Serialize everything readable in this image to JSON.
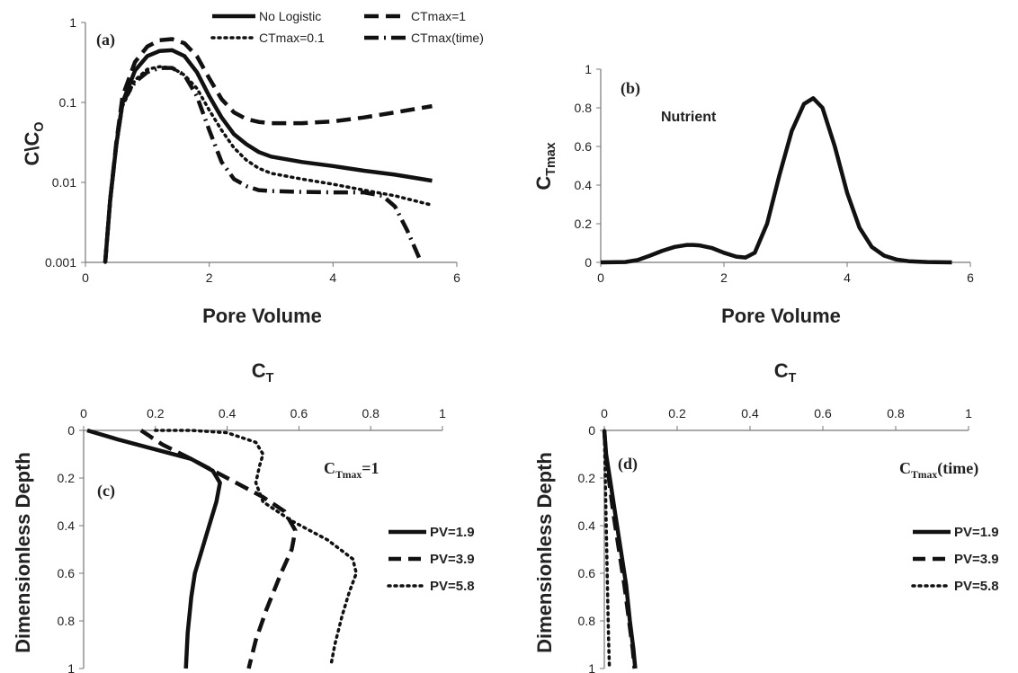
{
  "chart_data": [
    {
      "id": "a",
      "type": "line",
      "panel_label": "(a)",
      "xlabel": "Pore Volume",
      "ylabel": "C\\CO",
      "ylabel_main": "C\\C",
      "ylabel_sub": "O",
      "x_scale": "linear",
      "y_scale": "log",
      "xlim": [
        0,
        6
      ],
      "ylim": [
        0.001,
        1
      ],
      "x_ticks": [
        "0",
        "2",
        "4",
        "6"
      ],
      "y_ticks": [
        "0.001",
        "0.01",
        "0.1",
        "1"
      ],
      "legend_position": "top",
      "series": [
        {
          "name": "No Logistic",
          "style": "solid",
          "x": [
            0.32,
            0.4,
            0.5,
            0.6,
            0.8,
            1.0,
            1.2,
            1.4,
            1.6,
            1.8,
            2.0,
            2.2,
            2.4,
            2.6,
            2.8,
            3.0,
            3.5,
            4.0,
            4.5,
            5.0,
            5.6
          ],
          "y": [
            0.001,
            0.006,
            0.03,
            0.1,
            0.25,
            0.38,
            0.44,
            0.45,
            0.38,
            0.24,
            0.12,
            0.065,
            0.04,
            0.03,
            0.024,
            0.021,
            0.018,
            0.016,
            0.014,
            0.0125,
            0.0105
          ]
        },
        {
          "name": "CTmax=0.1",
          "style": "dotted",
          "x": [
            0.32,
            0.4,
            0.5,
            0.6,
            0.8,
            1.0,
            1.2,
            1.4,
            1.6,
            1.8,
            2.0,
            2.2,
            2.4,
            2.6,
            2.8,
            3.0,
            3.5,
            4.0,
            4.5,
            5.0,
            5.6
          ],
          "y": [
            0.001,
            0.006,
            0.028,
            0.09,
            0.19,
            0.26,
            0.28,
            0.27,
            0.22,
            0.15,
            0.08,
            0.045,
            0.027,
            0.019,
            0.015,
            0.013,
            0.011,
            0.0095,
            0.008,
            0.0068,
            0.0052
          ]
        },
        {
          "name": "CTmax=1",
          "style": "dashed",
          "x": [
            0.32,
            0.4,
            0.5,
            0.6,
            0.8,
            1.0,
            1.2,
            1.4,
            1.6,
            1.8,
            2.0,
            2.2,
            2.4,
            2.6,
            2.8,
            3.0,
            3.5,
            4.0,
            4.5,
            5.0,
            5.6
          ],
          "y": [
            0.001,
            0.006,
            0.032,
            0.12,
            0.32,
            0.5,
            0.6,
            0.62,
            0.55,
            0.38,
            0.2,
            0.11,
            0.075,
            0.062,
            0.057,
            0.055,
            0.055,
            0.058,
            0.065,
            0.075,
            0.09
          ]
        },
        {
          "name": "CTmax(time)",
          "style": "dashdot",
          "x": [
            0.32,
            0.4,
            0.5,
            0.6,
            0.8,
            1.0,
            1.2,
            1.4,
            1.6,
            1.8,
            2.0,
            2.2,
            2.4,
            2.6,
            2.8,
            3.0,
            3.5,
            4.0,
            4.5,
            4.8,
            5.0,
            5.2,
            5.4
          ],
          "y": [
            0.001,
            0.006,
            0.03,
            0.1,
            0.18,
            0.24,
            0.27,
            0.27,
            0.22,
            0.12,
            0.045,
            0.018,
            0.011,
            0.009,
            0.008,
            0.0078,
            0.0076,
            0.0075,
            0.0075,
            0.0068,
            0.005,
            0.0025,
            0.0011
          ]
        }
      ]
    },
    {
      "id": "b",
      "type": "line",
      "panel_label": "(b)",
      "annotation": "Nutrient",
      "xlabel": "Pore Volume",
      "ylabel": "CTmax",
      "ylabel_main": "C",
      "ylabel_sub": "Tmax",
      "x_scale": "linear",
      "y_scale": "linear",
      "xlim": [
        0,
        6
      ],
      "ylim": [
        0,
        1
      ],
      "x_ticks": [
        "0",
        "2",
        "4",
        "6"
      ],
      "y_ticks": [
        "0",
        "0.2",
        "0.4",
        "0.6",
        "0.8",
        "1"
      ],
      "series": [
        {
          "name": "",
          "style": "solid",
          "x": [
            0,
            0.4,
            0.6,
            0.8,
            1.0,
            1.2,
            1.4,
            1.5,
            1.6,
            1.8,
            2.0,
            2.2,
            2.35,
            2.5,
            2.7,
            2.9,
            3.1,
            3.3,
            3.45,
            3.6,
            3.8,
            4.0,
            4.2,
            4.4,
            4.6,
            4.8,
            5.0,
            5.3,
            5.7
          ],
          "y": [
            0,
            0.002,
            0.012,
            0.035,
            0.06,
            0.08,
            0.09,
            0.09,
            0.088,
            0.075,
            0.05,
            0.03,
            0.025,
            0.05,
            0.2,
            0.45,
            0.68,
            0.82,
            0.85,
            0.8,
            0.6,
            0.36,
            0.18,
            0.08,
            0.035,
            0.015,
            0.006,
            0.002,
            0.0
          ]
        }
      ]
    },
    {
      "id": "c",
      "type": "line",
      "panel_label": "(c)",
      "annotation_main": "C",
      "annotation_sub": "Tmax",
      "annotation_tail": "=1",
      "xlabel": "CT",
      "xlabel_main": "C",
      "xlabel_sub": "T",
      "ylabel": "Dimensionless Depth",
      "x_axis_position": "top",
      "y_inverted": true,
      "xlim": [
        0,
        1
      ],
      "ylim": [
        0,
        1
      ],
      "x_ticks": [
        "0",
        "0.2",
        "0.4",
        "0.6",
        "0.8",
        "1"
      ],
      "y_ticks": [
        "0",
        "0.2",
        "0.4",
        "0.6",
        "0.8",
        "1"
      ],
      "legend_position": "right",
      "series": [
        {
          "name": "PV=1.9",
          "style": "solid",
          "x": [
            0.01,
            0.1,
            0.2,
            0.3,
            0.36,
            0.38,
            0.37,
            0.35,
            0.33,
            0.31,
            0.3,
            0.29,
            0.285
          ],
          "y": [
            0,
            0.04,
            0.08,
            0.12,
            0.17,
            0.22,
            0.3,
            0.4,
            0.5,
            0.6,
            0.7,
            0.85,
            1.0
          ]
        },
        {
          "name": "PV=3.9",
          "style": "dashed",
          "x": [
            0.16,
            0.18,
            0.22,
            0.3,
            0.4,
            0.5,
            0.56,
            0.59,
            0.58,
            0.55,
            0.51,
            0.48,
            0.46
          ],
          "y": [
            0.0,
            0.02,
            0.06,
            0.12,
            0.2,
            0.28,
            0.34,
            0.42,
            0.5,
            0.6,
            0.75,
            0.88,
            1.0
          ]
        },
        {
          "name": "PV=5.8",
          "style": "dotted",
          "x": [
            0.2,
            0.3,
            0.4,
            0.48,
            0.5,
            0.49,
            0.48,
            0.5,
            0.58,
            0.68,
            0.75,
            0.76,
            0.74,
            0.72,
            0.7,
            0.69
          ],
          "y": [
            0.0,
            0.0,
            0.01,
            0.05,
            0.1,
            0.15,
            0.22,
            0.3,
            0.38,
            0.46,
            0.54,
            0.6,
            0.68,
            0.78,
            0.9,
            0.98
          ]
        }
      ]
    },
    {
      "id": "d",
      "type": "line",
      "panel_label": "(d)",
      "annotation_main": "C",
      "annotation_sub": "Tmax",
      "annotation_tail": "(time)",
      "xlabel": "CT",
      "xlabel_main": "C",
      "xlabel_sub": "T",
      "ylabel": "Dimensionless Depth",
      "x_axis_position": "top",
      "y_inverted": true,
      "xlim": [
        0,
        1
      ],
      "ylim": [
        0,
        1
      ],
      "x_ticks": [
        "0",
        "0.2",
        "0.4",
        "0.6",
        "0.8",
        "1"
      ],
      "y_ticks": [
        "0",
        "0.2",
        "0.4",
        "0.6",
        "0.8",
        "1"
      ],
      "legend_position": "right",
      "series": [
        {
          "name": "PV=1.9",
          "style": "solid",
          "x": [
            0.0,
            0.005,
            0.015,
            0.03,
            0.045,
            0.06,
            0.07,
            0.08,
            0.085
          ],
          "y": [
            0,
            0.1,
            0.2,
            0.35,
            0.5,
            0.65,
            0.8,
            0.92,
            1.0
          ]
        },
        {
          "name": "PV=3.9",
          "style": "dashed",
          "x": [
            0.0,
            0.004,
            0.012,
            0.025,
            0.04,
            0.055,
            0.068,
            0.078,
            0.083
          ],
          "y": [
            0,
            0.1,
            0.2,
            0.35,
            0.5,
            0.65,
            0.8,
            0.92,
            1.0
          ]
        },
        {
          "name": "PV=5.8",
          "style": "dotted",
          "x": [
            0.0,
            0.002,
            0.004,
            0.006,
            0.008,
            0.01,
            0.012,
            0.014
          ],
          "y": [
            0,
            0.15,
            0.3,
            0.45,
            0.6,
            0.75,
            0.9,
            1.0
          ]
        }
      ]
    }
  ]
}
